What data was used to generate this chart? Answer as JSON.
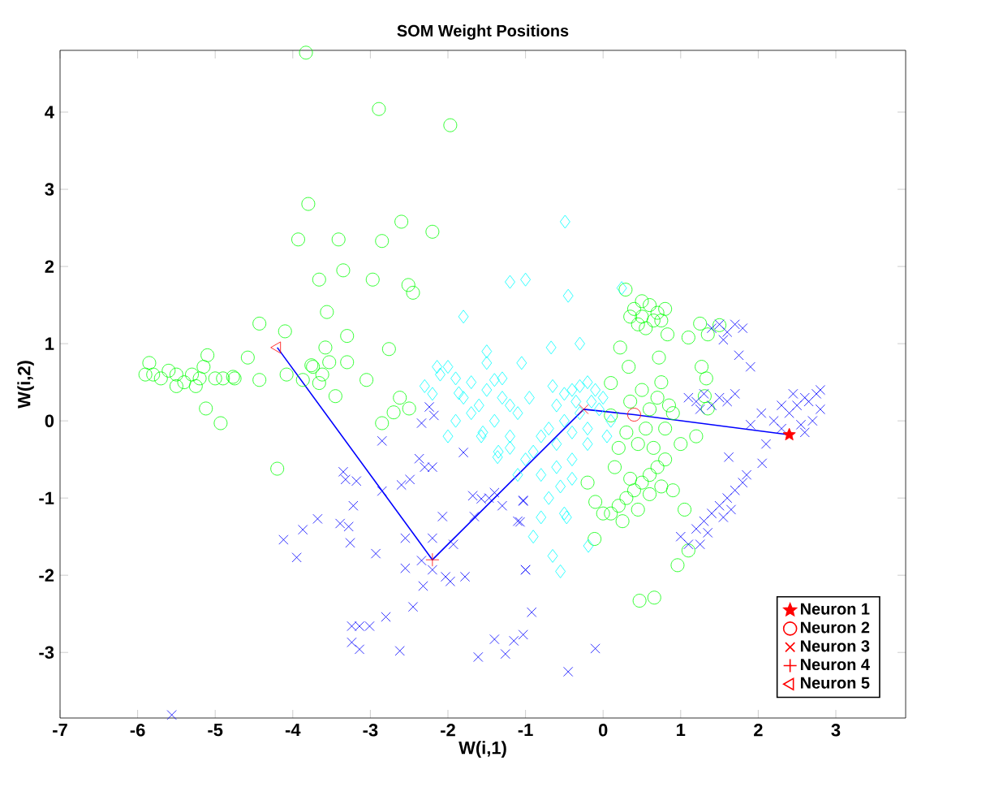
{
  "chart_data": {
    "type": "scatter",
    "title": "SOM Weight Positions",
    "xlabel": "W(i,1)",
    "ylabel": "W(i,2)",
    "xlim": [
      -7,
      3.9
    ],
    "ylim": [
      -3.85,
      4.8
    ],
    "xticks": [
      -7,
      -6,
      -5,
      -4,
      -3,
      -2,
      -1,
      0,
      1,
      2,
      3
    ],
    "yticks": [
      -3,
      -2,
      -1,
      0,
      1,
      2,
      3,
      4
    ],
    "legend": "bottom right",
    "series": [
      {
        "color": "#00ff00",
        "marker": "circle",
        "x": [
          -5.85,
          -5.8,
          -5.7,
          -5.6,
          -5.5,
          -5.4,
          -5.3,
          -5.2,
          -5.15,
          -5.1,
          -5.0,
          -4.9,
          -4.75,
          -5.25,
          -5.5,
          -5.9,
          -5.12,
          -4.93,
          -4.2,
          -2.85,
          -2.62,
          -2.5,
          -2.7,
          -3.83,
          -2.89,
          -1.97,
          -3.8,
          -3.93,
          -3.41,
          -2.85,
          -2.6,
          -2.2,
          -3.35,
          -3.66,
          -2.97,
          -2.51,
          -2.45,
          -3.56,
          -3.3,
          -2.76,
          -3.58,
          -4.43,
          -4.1,
          -4.58,
          -4.08,
          -3.76,
          -3.53,
          -3.3,
          -3.05,
          -4.43,
          -4.77,
          -3.62,
          -3.74,
          -3.45,
          -3.66,
          -3.87,
          0.4,
          0.5,
          0.6,
          0.7,
          0.75,
          0.45,
          0.55,
          0.65,
          0.35,
          0.8,
          0.5,
          0.29,
          1.25,
          1.5,
          1.35,
          1.1,
          0.83,
          0.22,
          0.33,
          0.72,
          1.27,
          1.33,
          1.31,
          1.35,
          0.1,
          0.1,
          0.5,
          0.7,
          0.6,
          0.8,
          0.9,
          0.3,
          0.45,
          0.65,
          0.2,
          0.75,
          0.85,
          0.35,
          1.0,
          1.2,
          0.55,
          0.1,
          0.2,
          0.3,
          0.4,
          0.5,
          0.6,
          0.7,
          0.8,
          0.25,
          0.45,
          0.6,
          0.75,
          0.35,
          -0.1,
          -0.2,
          0.0,
          0.9,
          1.05,
          0.15,
          1.1,
          0.96,
          -0.11,
          0.47,
          0.66
        ],
        "values": [
          0.75,
          0.6,
          0.55,
          0.65,
          0.45,
          0.5,
          0.6,
          0.55,
          0.7,
          0.85,
          0.55,
          0.55,
          0.55,
          0.45,
          0.6,
          0.6,
          0.16,
          -0.03,
          -0.62,
          -0.03,
          0.3,
          0.16,
          0.11,
          4.77,
          4.04,
          3.83,
          2.81,
          2.35,
          2.35,
          2.33,
          2.58,
          2.45,
          1.95,
          1.83,
          1.83,
          1.76,
          1.66,
          1.41,
          1.1,
          0.93,
          0.95,
          1.26,
          1.16,
          0.82,
          0.6,
          0.72,
          0.76,
          0.76,
          0.53,
          0.53,
          0.57,
          0.6,
          0.7,
          0.32,
          0.49,
          0.53,
          1.45,
          1.35,
          1.5,
          1.4,
          1.3,
          1.25,
          1.2,
          1.3,
          1.35,
          1.45,
          1.55,
          1.7,
          1.26,
          1.24,
          1.12,
          1.08,
          1.12,
          0.95,
          0.7,
          0.82,
          0.7,
          0.55,
          0.32,
          0.16,
          0.49,
          0.07,
          0.4,
          0.3,
          0.15,
          -0.1,
          0.1,
          -0.15,
          -0.3,
          -0.35,
          -0.35,
          0.5,
          0.2,
          0.25,
          -0.3,
          -0.2,
          -0.1,
          -1.2,
          -1.1,
          -1.0,
          -0.9,
          -0.8,
          -0.7,
          -0.6,
          -0.5,
          -1.3,
          -1.15,
          -0.95,
          -0.85,
          -0.75,
          -1.05,
          -0.8,
          -1.2,
          -0.9,
          -1.15,
          -0.6,
          -1.68,
          -1.87,
          -1.53,
          -2.33,
          -2.29
        ]
      },
      {
        "color": "#00ffff",
        "marker": "diamond",
        "x": [
          -0.49,
          -1.0,
          -0.45,
          -0.67,
          0.24,
          -0.6,
          -0.5,
          -0.4,
          -0.3,
          -0.2,
          -0.1,
          0.0,
          -0.05,
          -0.3,
          -0.5,
          -0.7,
          -0.8,
          -0.6,
          -0.9,
          -0.4,
          -0.2,
          -0.15,
          -0.35,
          -0.65,
          -0.95,
          -1.1,
          -1.2,
          -1.3,
          -1.5,
          -1.7,
          -1.9,
          -2.0,
          -2.1,
          -1.8,
          -1.6,
          -1.4,
          -1.2,
          -1.0,
          -1.1,
          -0.8,
          -0.6,
          -0.7,
          -0.5,
          -0.9,
          -0.8,
          -0.55,
          -0.4,
          -0.2,
          0.05,
          0.1,
          -2.3,
          -2.2,
          -1.8,
          -1.2,
          -1.3,
          -1.05,
          -1.5,
          -1.7,
          -1.9,
          -2.0,
          -1.5,
          -0.3,
          -0.4,
          -0.65,
          -0.55,
          -1.35,
          -1.55,
          -2.14,
          -1.86,
          -1.57,
          -1.36,
          -1.2,
          -1.4,
          -0.47,
          -0.19
        ],
        "values": [
          2.58,
          1.83,
          1.62,
          0.95,
          1.72,
          0.2,
          0.35,
          0.4,
          0.45,
          0.5,
          0.4,
          0.3,
          0.15,
          0.1,
          0.0,
          -0.1,
          -0.2,
          -0.3,
          -0.4,
          -0.15,
          -0.1,
          0.25,
          0.25,
          0.45,
          0.3,
          0.1,
          0.2,
          0.3,
          0.4,
          0.5,
          0.55,
          0.7,
          0.6,
          0.3,
          0.2,
          0.0,
          -0.2,
          -0.5,
          -0.7,
          -0.7,
          -0.6,
          -1.0,
          -1.2,
          -1.5,
          -1.25,
          -0.85,
          -0.5,
          -0.3,
          -0.2,
          0.0,
          0.45,
          0.35,
          1.35,
          1.8,
          0.55,
          0.75,
          0.75,
          0.1,
          0.0,
          -0.2,
          0.9,
          1.0,
          -0.75,
          -1.75,
          -1.95,
          -0.4,
          -0.15,
          0.7,
          0.36,
          -0.2,
          -0.47,
          -0.35,
          0.53,
          -1.25,
          -1.62
        ]
      },
      {
        "color": "#0000ff",
        "marker": "cross",
        "x": [
          2.4,
          2.5,
          2.6,
          2.7,
          2.8,
          2.55,
          2.65,
          2.45,
          2.3,
          2.75,
          2.6,
          2.3,
          2.2,
          2.1,
          2.05,
          1.9,
          2.8,
          1.1,
          1.2,
          1.3,
          1.4,
          1.5,
          1.25,
          1.6,
          1.7,
          1.4,
          1.5,
          1.6,
          1.7,
          1.8,
          1.55,
          1.75,
          1.9,
          1.2,
          1.3,
          1.4,
          1.5,
          1.6,
          1.7,
          1.8,
          1.35,
          1.55,
          1.65,
          1.0,
          1.1,
          1.85,
          1.25,
          -1.0,
          -1.1,
          -1.03,
          1.62,
          2.04,
          -2.24,
          -2.34,
          -2.18,
          -2.85,
          -1.8,
          -3.35,
          -3.32,
          -3.18,
          -2.37,
          -2.3,
          -2.2,
          -2.6,
          -2.49,
          -2.85,
          -3.22,
          -3.68,
          -3.87,
          -3.39,
          -3.28,
          -3.26,
          -4.12,
          -3.95,
          -2.93,
          -2.55,
          -2.07,
          -2.2,
          -1.93,
          -2.34,
          -2.55,
          -2.2,
          -2.03,
          -1.97,
          -1.78,
          -2.32,
          -2.45,
          -2.8,
          -3.24,
          -3.14,
          -3.01,
          -3.24,
          -3.14,
          -2.62,
          -1.61,
          -1.4,
          -1.26,
          -1.15,
          -1.03,
          -5.56,
          -1.68,
          -1.57,
          -1.47,
          -1.4,
          -1.3,
          -1.03,
          -1.66,
          -1.07,
          -1.0,
          -0.92,
          -0.45,
          -0.1
        ],
        "values": [
          0.1,
          0.2,
          0.3,
          0.0,
          0.15,
          -0.05,
          0.25,
          0.35,
          0.2,
          0.35,
          -0.15,
          -0.1,
          0.0,
          -0.3,
          -0.55,
          -0.05,
          0.4,
          0.3,
          0.25,
          0.35,
          0.2,
          0.3,
          0.15,
          0.25,
          0.35,
          1.2,
          1.25,
          1.15,
          1.25,
          1.2,
          1.05,
          0.85,
          0.7,
          -1.4,
          -1.3,
          -1.2,
          -1.1,
          -1.0,
          -0.9,
          -0.8,
          -1.45,
          -1.25,
          -1.15,
          -1.5,
          -1.6,
          -0.7,
          -1.6,
          -1.93,
          -1.3,
          -1.03,
          -0.47,
          0.1,
          0.18,
          -0.03,
          0.07,
          -0.26,
          -0.41,
          -0.66,
          -0.76,
          -0.78,
          -0.49,
          -0.6,
          -0.6,
          -0.83,
          -0.76,
          -0.91,
          -1.1,
          -1.27,
          -1.41,
          -1.33,
          -1.37,
          -1.58,
          -1.54,
          -1.77,
          -1.72,
          -1.52,
          -1.24,
          -1.52,
          -1.6,
          -1.81,
          -1.91,
          -1.93,
          -2.02,
          -2.08,
          -2.02,
          -2.14,
          -2.41,
          -2.54,
          -2.66,
          -2.66,
          -2.66,
          -2.87,
          -2.96,
          -2.98,
          -3.06,
          -2.83,
          -3.02,
          -2.85,
          -2.77,
          -3.81,
          -0.97,
          -1.01,
          -1.0,
          -0.93,
          -1.1,
          -1.04,
          -1.24,
          -1.31,
          -1.93,
          -2.48,
          -3.25,
          -2.95
        ]
      },
      {
        "type": "line",
        "color": "#0000ff",
        "marker": "none",
        "x": [
          -4.2,
          -2.2,
          -0.25,
          0.4,
          2.4
        ],
        "values": [
          0.95,
          -1.8,
          0.15,
          0.08,
          -0.18
        ]
      },
      {
        "name": "Neuron 1",
        "color": "#ff0000",
        "marker": "star",
        "x": [
          2.4
        ],
        "values": [
          -0.18
        ]
      },
      {
        "name": "Neuron 2",
        "color": "#ff0000",
        "marker": "circle",
        "x": [
          0.4
        ],
        "values": [
          0.08
        ]
      },
      {
        "name": "Neuron 3",
        "color": "#ff0000",
        "marker": "cross",
        "x": [
          -0.25
        ],
        "values": [
          0.15
        ]
      },
      {
        "name": "Neuron 4",
        "color": "#ff0000",
        "marker": "plus",
        "x": [
          -2.2
        ],
        "values": [
          -1.8
        ]
      },
      {
        "name": "Neuron 5",
        "color": "#ff0000",
        "marker": "triangle",
        "x": [
          -4.2
        ],
        "values": [
          0.95
        ]
      }
    ]
  }
}
